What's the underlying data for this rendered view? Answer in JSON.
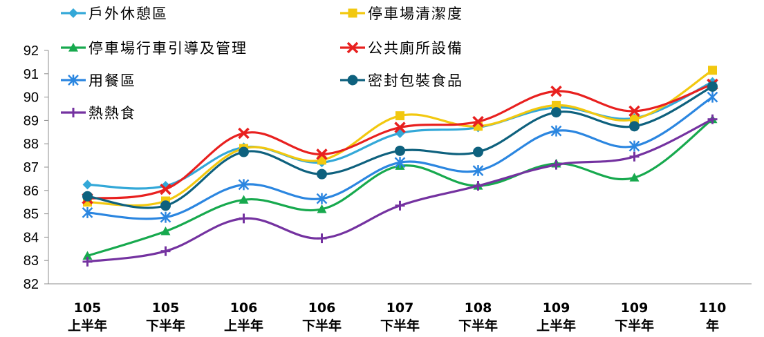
{
  "chart_data": {
    "type": "line",
    "title": "",
    "xlabel": "",
    "ylabel": "",
    "ylim": [
      82,
      92
    ],
    "yticks": [
      82,
      83,
      84,
      85,
      86,
      87,
      88,
      89,
      90,
      91,
      92
    ],
    "grid": false,
    "legend_position": "top",
    "categories": [
      [
        "105",
        "上半年"
      ],
      [
        "105",
        "下半年"
      ],
      [
        "106",
        "上半年"
      ],
      [
        "106",
        "下半年"
      ],
      [
        "107",
        "下半年"
      ],
      [
        "108",
        "下半年"
      ],
      [
        "109",
        "上半年"
      ],
      [
        "109",
        "下半年"
      ],
      [
        "110",
        "年"
      ]
    ],
    "series": [
      {
        "name": "戶外休憩區",
        "color": "#33A8D8",
        "marker": "diamond",
        "values": [
          86.25,
          86.2,
          87.85,
          87.2,
          88.45,
          88.7,
          89.55,
          89.1,
          90.65
        ]
      },
      {
        "name": "停車場清潔度",
        "color": "#F2C80F",
        "marker": "square",
        "values": [
          85.5,
          85.55,
          87.8,
          87.3,
          89.2,
          88.75,
          89.65,
          89.05,
          91.15
        ]
      },
      {
        "name": "停車場行車引導及管理",
        "color": "#17A94E",
        "marker": "triangle",
        "values": [
          83.2,
          84.25,
          85.6,
          85.2,
          87.05,
          86.2,
          87.15,
          86.55,
          89.05
        ]
      },
      {
        "name": "公共廁所設備",
        "color": "#E8201F",
        "marker": "x",
        "values": [
          85.65,
          86.05,
          88.45,
          87.55,
          88.7,
          88.95,
          90.25,
          89.4,
          90.55
        ]
      },
      {
        "name": "用餐區",
        "color": "#2B86E0",
        "marker": "asterisk",
        "values": [
          85.05,
          84.85,
          86.25,
          85.65,
          87.2,
          86.85,
          88.55,
          87.9,
          90.0
        ]
      },
      {
        "name": "密封包裝食品",
        "color": "#0E617E",
        "marker": "circle",
        "values": [
          85.75,
          85.35,
          87.65,
          86.7,
          87.7,
          87.65,
          89.35,
          88.75,
          90.45
        ]
      },
      {
        "name": "熱熱食",
        "color": "#7432A0",
        "marker": "plus",
        "values": [
          82.95,
          83.4,
          84.8,
          83.95,
          85.35,
          86.2,
          87.1,
          87.45,
          89.05
        ]
      }
    ]
  }
}
